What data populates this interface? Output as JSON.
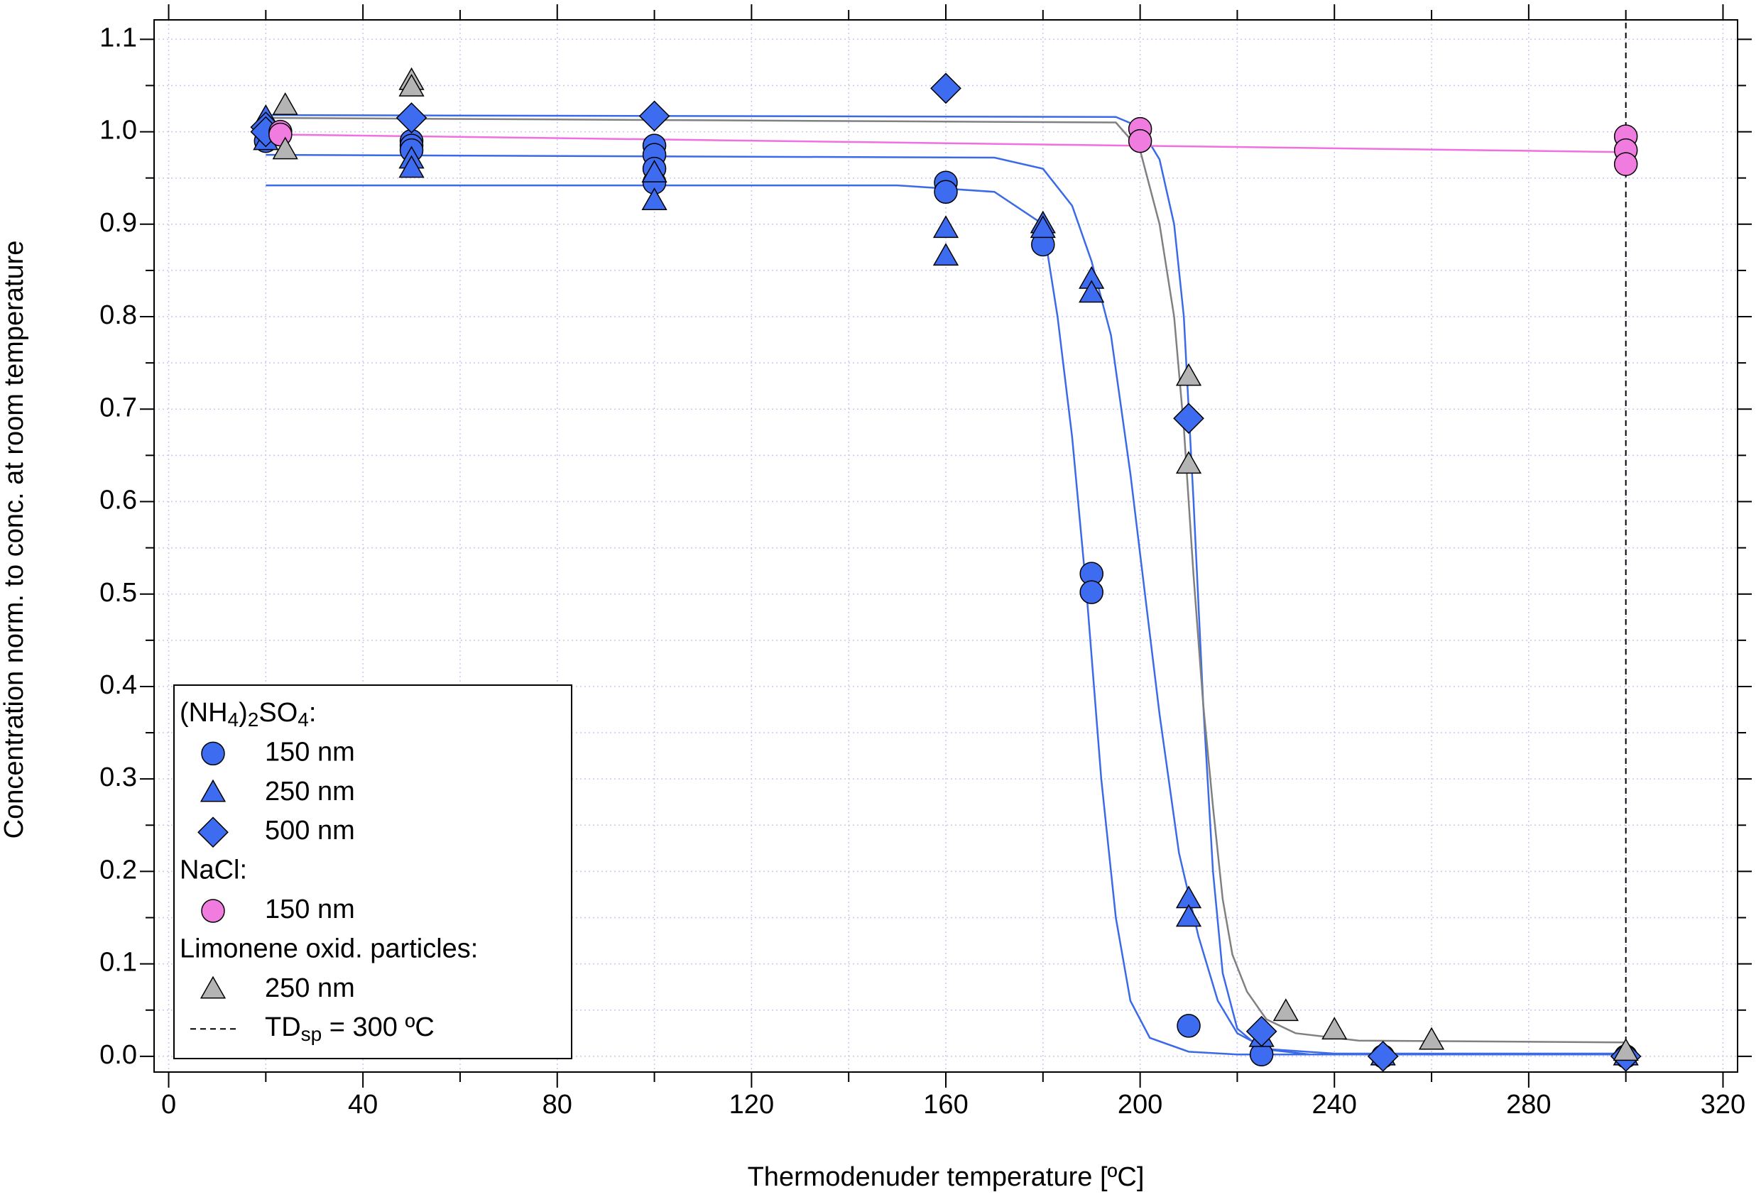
{
  "chart_data": {
    "type": "scatter",
    "x_label": "Thermodenuder temperature [ºC]",
    "y_label": "Concentration norm. to conc. at room temperature",
    "xlim": [
      -3,
      323
    ],
    "ylim": [
      -0.017,
      1.121
    ],
    "xticks": [
      0,
      40,
      80,
      120,
      160,
      200,
      240,
      280,
      320
    ],
    "xminorticks": [
      20,
      60,
      100,
      140,
      180,
      220,
      260,
      300
    ],
    "yticks": [
      {
        "value": 0,
        "label": "0.0"
      },
      0.1,
      0.2,
      0.3,
      0.4,
      0.5,
      0.6,
      0.7,
      0.8,
      0.9,
      {
        "value": 1,
        "label": "1.0"
      },
      1.1
    ],
    "yminorticks": [
      0.05,
      0.15,
      0.25,
      0.35,
      0.45,
      0.55,
      0.65,
      0.75,
      0.85,
      0.95,
      1.05
    ],
    "grid": true,
    "groups": [
      {
        "title_parts": [
          "(NH",
          "4",
          ")",
          "2",
          "SO",
          "4",
          ":"
        ],
        "series": [
          {
            "name": "150 nm",
            "marker": "circle",
            "color": "#3d6cf0",
            "fit_color": "#3a6ae8",
            "x": [
              20,
              20,
              50,
              50,
              50,
              100,
              100,
              100,
              100,
              160,
              160,
              180,
              190,
              190,
              210,
              225,
              250,
              300
            ],
            "y": [
              1.0,
              0.99,
              0.99,
              0.985,
              0.98,
              0.985,
              0.975,
              0.96,
              0.945,
              0.945,
              0.935,
              0.878,
              0.522,
              0.502,
              0.033,
              0.002,
              0.0,
              0.0
            ],
            "fit": {
              "x": [
                20,
                150,
                170,
                180,
                183,
                186,
                189,
                192,
                195,
                198,
                202,
                210,
                220,
                300
              ],
              "y": [
                0.942,
                0.942,
                0.935,
                0.9,
                0.8,
                0.67,
                0.5,
                0.3,
                0.15,
                0.06,
                0.02,
                0.005,
                0.002,
                0.002
              ]
            }
          },
          {
            "name": "250 nm",
            "marker": "triangle",
            "color": "#3d6cf0",
            "fit_color": "#3a6ae8",
            "x": [
              20,
              20,
              50,
              50,
              100,
              100,
              160,
              160,
              180,
              180,
              190,
              190,
              210,
              210,
              225,
              250,
              300
            ],
            "y": [
              1.015,
              0.99,
              0.97,
              0.96,
              0.955,
              0.925,
              0.895,
              0.865,
              0.9,
              0.895,
              0.84,
              0.825,
              0.17,
              0.15,
              0.02,
              0.0,
              0.0
            ],
            "fit": {
              "x": [
                20,
                170,
                180,
                186,
                190,
                194,
                198,
                201,
                204,
                208,
                212,
                216,
                220,
                226,
                240,
                300
              ],
              "y": [
                0.975,
                0.972,
                0.96,
                0.92,
                0.86,
                0.78,
                0.63,
                0.5,
                0.37,
                0.22,
                0.13,
                0.06,
                0.025,
                0.008,
                0.003,
                0.003
              ]
            }
          },
          {
            "name": "500 nm",
            "marker": "diamond",
            "color": "#3d6cf0",
            "fit_color": "#3a6ae8",
            "x": [
              20,
              20,
              50,
              100,
              160,
              210,
              225,
              250,
              300
            ],
            "y": [
              1.005,
              1.0,
              1.015,
              1.017,
              1.047,
              0.69,
              0.027,
              0.0,
              0.0
            ],
            "fit": {
              "x": [
                20,
                195,
                200,
                204,
                207,
                209,
                211,
                213,
                215,
                217,
                220,
                225,
                235,
                300
              ],
              "y": [
                1.018,
                1.016,
                1.005,
                0.97,
                0.9,
                0.8,
                0.6,
                0.38,
                0.2,
                0.09,
                0.03,
                0.008,
                0.002,
                0.002
              ]
            }
          }
        ]
      },
      {
        "title_parts": [
          "NaCl:"
        ],
        "series": [
          {
            "name": "150 nm",
            "marker": "circle",
            "color": "#f07ce0",
            "fit_color": "#f070e0",
            "x": [
              23,
              23,
              200,
              200,
              300,
              300,
              300
            ],
            "y": [
              1.0,
              0.997,
              1.003,
              0.99,
              0.995,
              0.98,
              0.965
            ],
            "fit": {
              "x": [
                23,
                300
              ],
              "y": [
                0.997,
                0.978
              ]
            }
          }
        ]
      },
      {
        "title_parts": [
          "Limonene oxid. particles:"
        ],
        "series": [
          {
            "name": "250 nm",
            "marker": "triangle",
            "color": "#b4b4b4",
            "fit_color": "#808080",
            "x": [
              24,
              24,
              50,
              50,
              210,
              210,
              230,
              240,
              260,
              300
            ],
            "y": [
              1.028,
              0.98,
              1.055,
              1.048,
              0.735,
              0.64,
              0.048,
              0.028,
              0.017,
              0.005
            ],
            "fit": {
              "x": [
                20,
                195,
                200,
                204,
                207,
                209,
                211,
                213,
                215,
                217,
                219,
                222,
                226,
                232,
                245,
                300
              ],
              "y": [
                1.015,
                1.01,
                0.98,
                0.9,
                0.8,
                0.68,
                0.52,
                0.38,
                0.27,
                0.17,
                0.11,
                0.07,
                0.04,
                0.025,
                0.017,
                0.015
              ]
            }
          }
        ]
      }
    ],
    "reference_line": {
      "x": 300,
      "label_parts": [
        "TD",
        "sp",
        " = 300 ºC"
      ]
    }
  }
}
